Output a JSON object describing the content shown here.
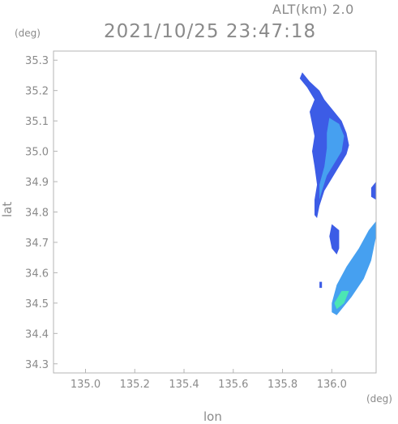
{
  "header": {
    "altitude_label": "ALT(km) 2.0",
    "timestamp": "2021/10/25 23:47:18"
  },
  "axes": {
    "y_unit": "(deg)",
    "x_unit": "(deg)",
    "y_label": "lat",
    "x_label": "lon"
  },
  "chart_data": {
    "type": "heatmap",
    "x_label": "lon",
    "y_label": "lat",
    "x_unit": "deg",
    "y_unit": "deg",
    "xlim": [
      134.87,
      136.18
    ],
    "ylim": [
      34.27,
      35.33
    ],
    "x_ticks": [
      {
        "value": 135.0,
        "label": "135.0"
      },
      {
        "value": 135.2,
        "label": "135.2"
      },
      {
        "value": 135.4,
        "label": "135.4"
      },
      {
        "value": 135.6,
        "label": "135.6"
      },
      {
        "value": 135.8,
        "label": "135.8"
      },
      {
        "value": 136.0,
        "label": "136.0"
      }
    ],
    "y_ticks": [
      {
        "value": 34.3,
        "label": "34.3"
      },
      {
        "value": 34.4,
        "label": "34.4"
      },
      {
        "value": 34.5,
        "label": "34.5"
      },
      {
        "value": 34.6,
        "label": "34.6"
      },
      {
        "value": 34.7,
        "label": "34.7"
      },
      {
        "value": 34.8,
        "label": "34.8"
      },
      {
        "value": 34.9,
        "label": "34.9"
      },
      {
        "value": 35.0,
        "label": "35.0"
      },
      {
        "value": 35.1,
        "label": "35.1"
      },
      {
        "value": 35.2,
        "label": "35.2"
      },
      {
        "value": 35.3,
        "label": "35.3"
      }
    ],
    "colors": {
      "frame": "#b4b4b4",
      "text": "#8a8a8a",
      "low": "#3c5ce6",
      "mid": "#46a0f0",
      "high": "#4ce6b4"
    },
    "echo_regions": [
      {
        "name": "northern-band",
        "level": "low",
        "polygon": [
          [
            135.88,
            35.26
          ],
          [
            135.91,
            35.23
          ],
          [
            135.95,
            35.2
          ],
          [
            135.97,
            35.17
          ],
          [
            136.01,
            35.13
          ],
          [
            136.04,
            35.1
          ],
          [
            136.06,
            35.06
          ],
          [
            136.07,
            35.02
          ],
          [
            136.06,
            34.99
          ],
          [
            136.03,
            34.95
          ],
          [
            136.0,
            34.91
          ],
          [
            135.97,
            34.87
          ],
          [
            135.95,
            34.82
          ],
          [
            135.94,
            34.78
          ],
          [
            135.93,
            34.79
          ],
          [
            135.93,
            34.84
          ],
          [
            135.94,
            34.89
          ],
          [
            135.93,
            34.95
          ],
          [
            135.92,
            35.0
          ],
          [
            135.93,
            35.05
          ],
          [
            135.92,
            35.09
          ],
          [
            135.91,
            35.13
          ],
          [
            135.93,
            35.17
          ],
          [
            135.9,
            35.21
          ],
          [
            135.87,
            35.24
          ]
        ]
      },
      {
        "name": "northern-core",
        "level": "mid",
        "polygon": [
          [
            135.99,
            35.11
          ],
          [
            136.03,
            35.09
          ],
          [
            136.05,
            35.05
          ],
          [
            136.04,
            35.0
          ],
          [
            136.01,
            34.96
          ],
          [
            135.98,
            34.92
          ],
          [
            135.96,
            34.87
          ],
          [
            135.95,
            34.84
          ],
          [
            135.95,
            34.89
          ],
          [
            135.97,
            34.95
          ],
          [
            135.98,
            35.01
          ],
          [
            135.98,
            35.06
          ]
        ]
      },
      {
        "name": "middle-cell",
        "level": "low",
        "polygon": [
          [
            136.0,
            34.76
          ],
          [
            136.03,
            34.74
          ],
          [
            136.03,
            34.68
          ],
          [
            136.02,
            34.66
          ],
          [
            136.0,
            34.68
          ],
          [
            135.99,
            34.72
          ]
        ]
      },
      {
        "name": "southern-band",
        "level": "mid",
        "polygon": [
          [
            136.02,
            34.46
          ],
          [
            136.08,
            34.52
          ],
          [
            136.13,
            34.58
          ],
          [
            136.16,
            34.64
          ],
          [
            136.18,
            34.72
          ],
          [
            136.18,
            34.77
          ],
          [
            136.15,
            34.74
          ],
          [
            136.11,
            34.68
          ],
          [
            136.06,
            34.62
          ],
          [
            136.02,
            34.56
          ],
          [
            136.0,
            34.5
          ],
          [
            136.0,
            34.47
          ]
        ]
      },
      {
        "name": "southern-core",
        "level": "high",
        "polygon": [
          [
            136.02,
            34.48
          ],
          [
            136.05,
            34.5
          ],
          [
            136.07,
            34.54
          ],
          [
            136.04,
            34.54
          ],
          [
            136.01,
            34.5
          ]
        ]
      },
      {
        "name": "eastern-edge",
        "level": "low",
        "polygon": [
          [
            136.16,
            34.88
          ],
          [
            136.18,
            34.9
          ],
          [
            136.18,
            34.84
          ],
          [
            136.16,
            34.85
          ]
        ]
      },
      {
        "name": "small-west-cell",
        "level": "low",
        "polygon": [
          [
            135.95,
            34.57
          ],
          [
            135.96,
            34.57
          ],
          [
            135.96,
            34.55
          ],
          [
            135.95,
            34.55
          ]
        ]
      }
    ]
  }
}
